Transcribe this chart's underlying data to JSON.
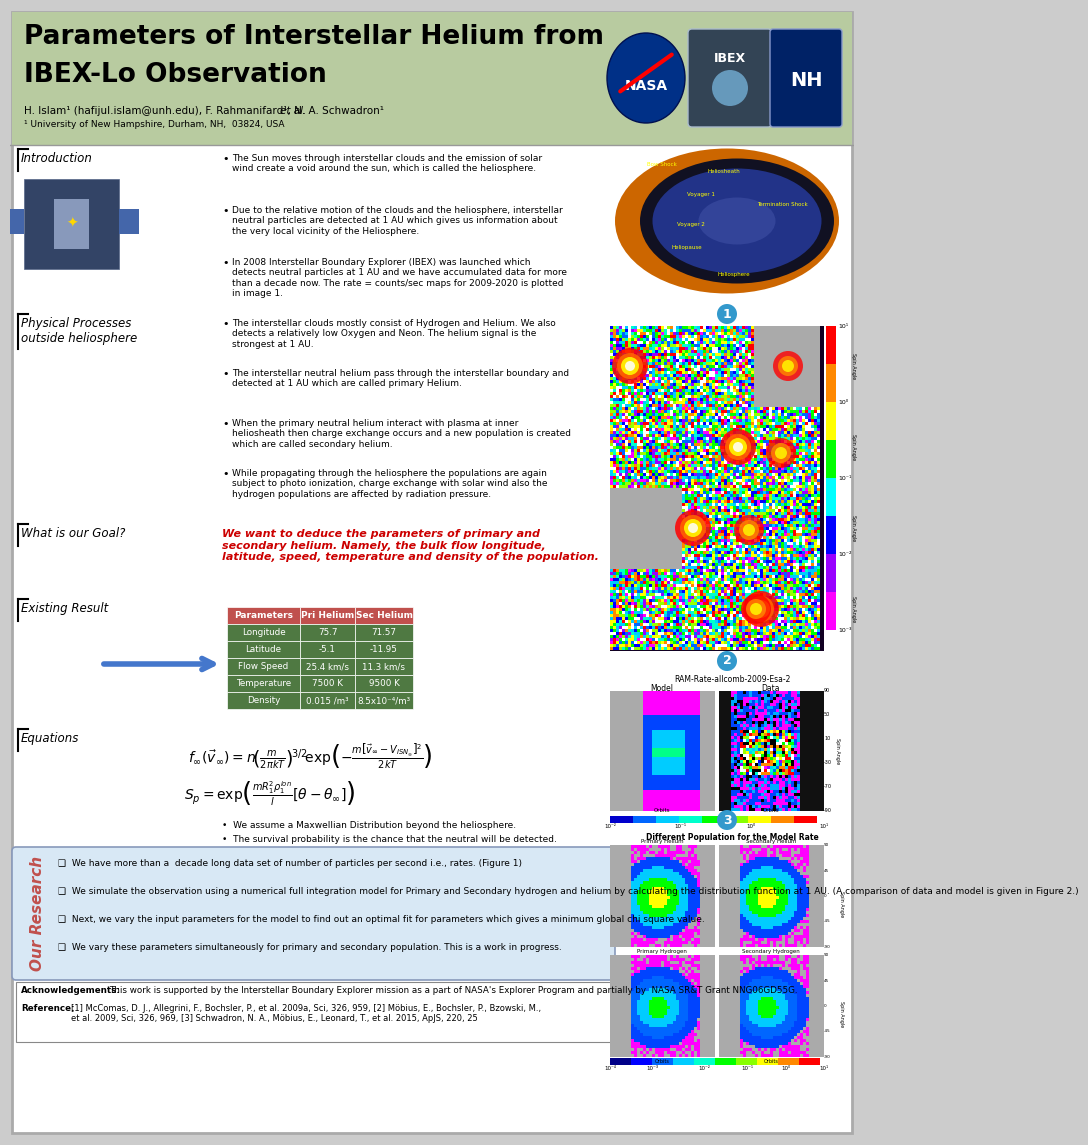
{
  "title_line1": "Parameters of Interstellar Helium from",
  "title_line2": "IBEX-Lo Observation",
  "authors": "H. Islam¹ (hafijul.islam@unh.edu), F. Rahmanifard¹, N. A. Schwadron¹ ",
  "authors_italic": "et al.",
  "affiliation": "¹ University of New Hampshire, Durham, NH,  03824, USA",
  "header_bg": "#b8cba0",
  "poster_bg": "#ffffff",
  "border_color": "#888888",
  "intro_text1": "The Sun moves through interstellar clouds and the emission of solar\nwind create a void around the sun, which is called the heliosphere.",
  "intro_text2": "Due to the relative motion of the clouds and the heliosphere, interstellar\nneutral particles are detected at 1 AU which gives us information about\nthe very local vicinity of the Heliosphere.",
  "intro_text3": "In 2008 Interstellar Boundary Explorer (IBEX) was launched which\ndetects neutral particles at 1 AU and we have accumulated data for more\nthan a decade now. The rate = counts/sec maps for 2009-2020 is plotted\nin image 1.",
  "phys_text1": "The interstellar clouds mostly consist of Hydrogen and Helium. We also\ndetects a relatively low Oxygen and Neon. The helium signal is the\nstrongest at 1 AU.",
  "phys_text2": "The interstellar neutral helium pass through the interstellar boundary and\ndetected at 1 AU which are called primary Helium.",
  "phys_text3": "When the primary neutral helium interact with plasma at inner\nheliosheath then charge exchange occurs and a new population is created\nwhich are called secondary helium.",
  "phys_text4": "While propagating through the heliosphere the populations are again\nsubject to photo ionization, charge exchange with solar wind also the\nhydrogen populations are affected by radiation pressure.",
  "goal_text": "We want to deduce the parameters of primary and\nsecondary helium. Namely, the bulk flow longitude,\nlatitude, speed, temperature and density of the population.",
  "table_header_bg": "#c0504d",
  "table_row_bg": "#4f7942",
  "table_headers": [
    "Parameters",
    "Pri Helium",
    "Sec Helium"
  ],
  "table_rows": [
    [
      "Longitude",
      "75.7",
      "71.57"
    ],
    [
      "Latitude",
      "-5.1",
      "-11.95"
    ],
    [
      "Flow Speed",
      "25.4 km/s",
      "11.3 km/s"
    ],
    [
      "Temperature",
      "7500 K",
      "9500 K"
    ],
    [
      "Density",
      "0.015 /m³",
      "8.5x10⁻⁴/m³"
    ]
  ],
  "eq_note1": "We assume a Maxwellian Distribution beyond the heliosphere.",
  "eq_note2": "The survival probability is the chance that the neutral will be detected.",
  "research_text1": "We have more than a  decade long data set of number of particles per second i.e., rates. (Figure 1)",
  "research_text2": "We simulate the observation using a numerical full integration model for Primary and Secondary hydrogen and helium by calculating the distribution function at 1 AU. (A comparison of data and model is given in Figure 2.)",
  "research_text3": "Next, we vary the input parameters for the model to find out an optimal fit for parameters which gives a minimum global chi square value.",
  "research_text4": "We vary these parameters simultaneously for primary and secondary population. This is a work in progress.",
  "research_bg": "#d8e8f5",
  "research_border": "#8899bb",
  "research_label_color": "#c0504d",
  "ack_text": "This work is supported by the Interstellar Boundary Explorer mission as a part of NASA's Explorer Program and partially by  NASA SR&T Grant NNG06GD55G.",
  "ref_text": "[1] McComas, D. J., Allegrini, F., Bochsler, P., et al. 2009a, Sci, 326, 959, [2] Möbius, E., Bochsler, P., Bzowski, M.,\net al. 2009, Sci, 326, 969, [3] Schwadron, N. A., Möbius, E., Leonard, T., et al. 2015, ApJS, 220, 25",
  "figure2_title": "RAM-Rate-allcomb-2009-Esa-2",
  "figure2_model": "Model",
  "figure2_data": "Data",
  "figure3_title": "Different Population for the Model Rate",
  "section_intro": "Introduction",
  "section_phys": "Physical Processes\noutside heliosphere",
  "section_goal": "What is our Goal?",
  "section_result": "Existing Result",
  "section_eq": "Equations",
  "section_research": "Our Research",
  "badge_color": "#3399cc",
  "arrow_color": "#4477cc"
}
